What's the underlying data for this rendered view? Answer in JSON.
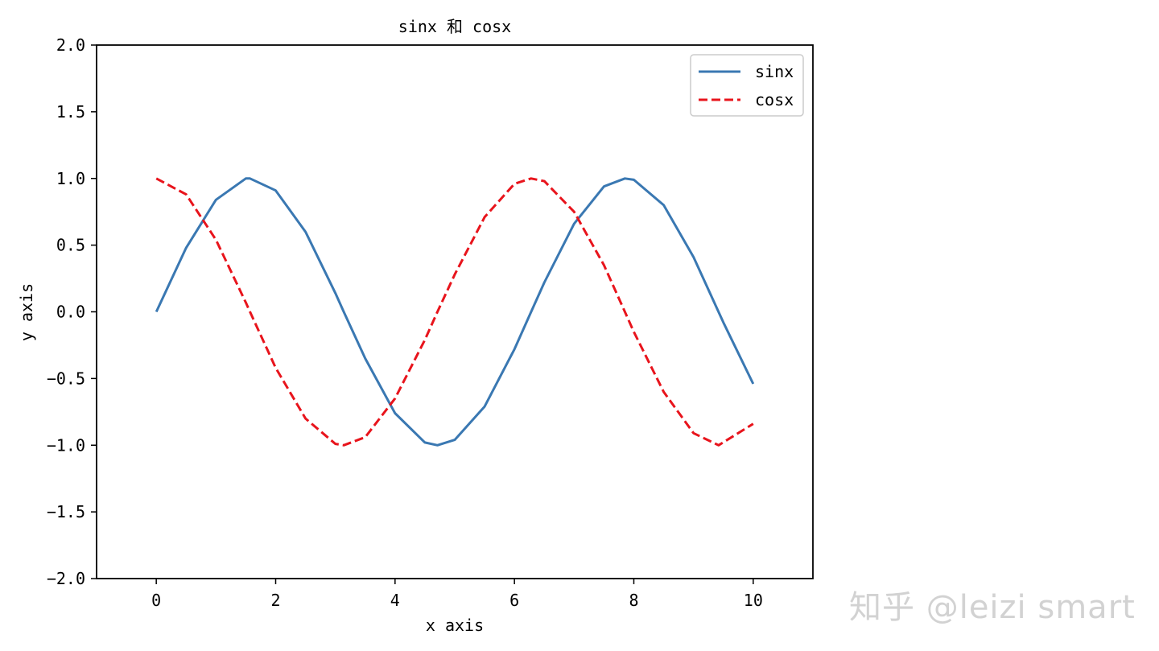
{
  "chart_data": {
    "type": "line",
    "title": "sinx 和 cosx",
    "xlabel": "x axis",
    "ylabel": "y axis",
    "xlim": [
      -1,
      11
    ],
    "ylim": [
      -2.0,
      2.0
    ],
    "x_ticks": [
      0,
      2,
      4,
      6,
      8,
      10
    ],
    "x_tick_labels": [
      "0",
      "2",
      "4",
      "6",
      "8",
      "10"
    ],
    "y_ticks": [
      2.0,
      1.5,
      1.0,
      0.5,
      0.0,
      -0.5,
      -1.0,
      -1.5,
      -2.0
    ],
    "y_tick_labels": [
      "2.0",
      "1.5",
      "1.0",
      "0.5",
      "0.0",
      "−0.5",
      "−1.0",
      "−1.5",
      "−2.0"
    ],
    "grid": false,
    "legend_position": "top-right",
    "series": [
      {
        "name": "sinx",
        "color": "#3a78b2",
        "line_style": "solid",
        "x": [
          0,
          0.5,
          1,
          1.5,
          1.57,
          2,
          2.5,
          3,
          3.14,
          3.5,
          4,
          4.5,
          4.71,
          5,
          5.5,
          6,
          6.28,
          6.5,
          7,
          7.5,
          7.85,
          8,
          8.5,
          9,
          9.5,
          10
        ],
        "y": [
          0,
          0.48,
          0.84,
          1.0,
          1.0,
          0.91,
          0.6,
          0.14,
          0.0,
          -0.35,
          -0.76,
          -0.98,
          -1.0,
          -0.96,
          -0.71,
          -0.28,
          0.0,
          0.22,
          0.66,
          0.94,
          1.0,
          0.99,
          0.8,
          0.41,
          -0.08,
          -0.54
        ]
      },
      {
        "name": "cosx",
        "color": "#e8141c",
        "line_style": "dashed",
        "x": [
          0,
          0.5,
          1,
          1.5,
          1.57,
          2,
          2.5,
          3,
          3.14,
          3.5,
          4,
          4.5,
          4.71,
          5,
          5.5,
          6,
          6.28,
          6.5,
          7,
          7.5,
          7.85,
          8,
          8.5,
          9,
          9.42,
          10
        ],
        "y": [
          1.0,
          0.88,
          0.54,
          0.07,
          0.0,
          -0.42,
          -0.8,
          -0.99,
          -1.0,
          -0.94,
          -0.65,
          -0.21,
          0.0,
          0.28,
          0.71,
          0.96,
          1.0,
          0.98,
          0.75,
          0.35,
          0.0,
          -0.15,
          -0.6,
          -0.91,
          -1.0,
          -0.84
        ]
      }
    ]
  },
  "watermark": "知乎 @leizi smart"
}
